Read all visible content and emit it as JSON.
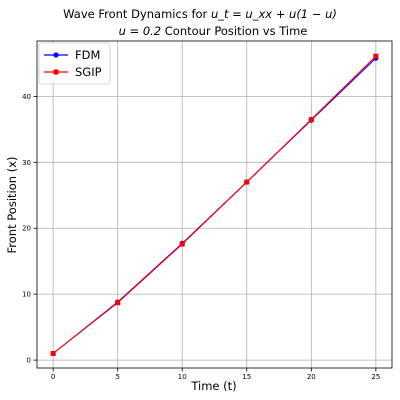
{
  "chart_data": {
    "type": "line",
    "title_line1_prefix": "Wave Front Dynamics for ",
    "title_line1_math": "u_t = u_xx + u(1 − u)",
    "title_line2_math": "u = 0.2",
    "title_line2_rest": " Contour Position vs Time",
    "xlabel": "Time (t)",
    "ylabel": "Front Position (x)",
    "xlim": [
      -1.25,
      26.25
    ],
    "ylim": [
      -1.2,
      48.4
    ],
    "xticks": [
      0,
      5,
      10,
      15,
      20,
      25
    ],
    "yticks": [
      0,
      10,
      20,
      30,
      40
    ],
    "grid": true,
    "legend_position": "top-left",
    "x": [
      0,
      5,
      10,
      15,
      20,
      25
    ],
    "series": [
      {
        "name": "FDM",
        "color": "#0000ff",
        "marker": "circle",
        "values": [
          1.0,
          8.8,
          17.7,
          27.0,
          36.4,
          45.8
        ]
      },
      {
        "name": "SGIP",
        "color": "#ff0000",
        "marker": "square",
        "values": [
          1.0,
          8.7,
          17.6,
          27.0,
          36.5,
          46.1
        ]
      }
    ]
  }
}
